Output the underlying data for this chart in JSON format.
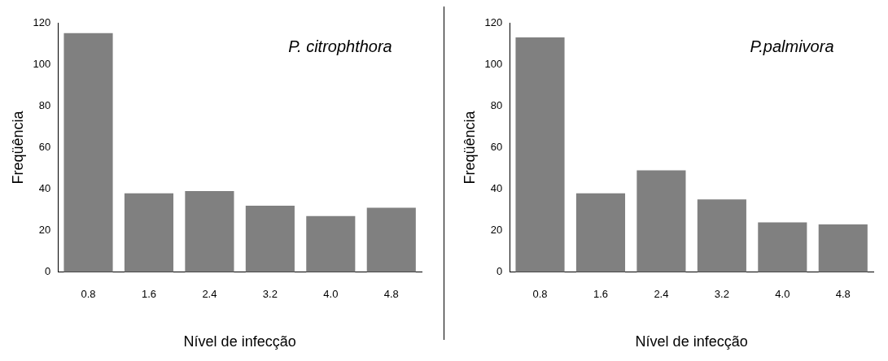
{
  "chart_data": [
    {
      "type": "bar",
      "title": "P. citrophthora",
      "xlabel": "Nível de infecção",
      "ylabel": "Freqüência",
      "categories": [
        "0.8",
        "1.6",
        "2.4",
        "3.2",
        "4.0",
        "4.8"
      ],
      "values": [
        115,
        38,
        39,
        32,
        27,
        31
      ],
      "color": "#808080",
      "ylim": [
        0,
        120
      ],
      "yticks": [
        0,
        20,
        40,
        60,
        80,
        100,
        120
      ],
      "grid": false
    },
    {
      "type": "bar",
      "title": "P.palmivora",
      "xlabel": "Nível de infecção",
      "ylabel": "Freqüência",
      "categories": [
        "0.8",
        "1.6",
        "2.4",
        "3.2",
        "4.0",
        "4.8"
      ],
      "values": [
        113,
        38,
        49,
        35,
        24,
        23
      ],
      "color": "#808080",
      "ylim": [
        0,
        120
      ],
      "yticks": [
        0,
        20,
        40,
        60,
        80,
        100,
        120
      ],
      "grid": false
    }
  ]
}
